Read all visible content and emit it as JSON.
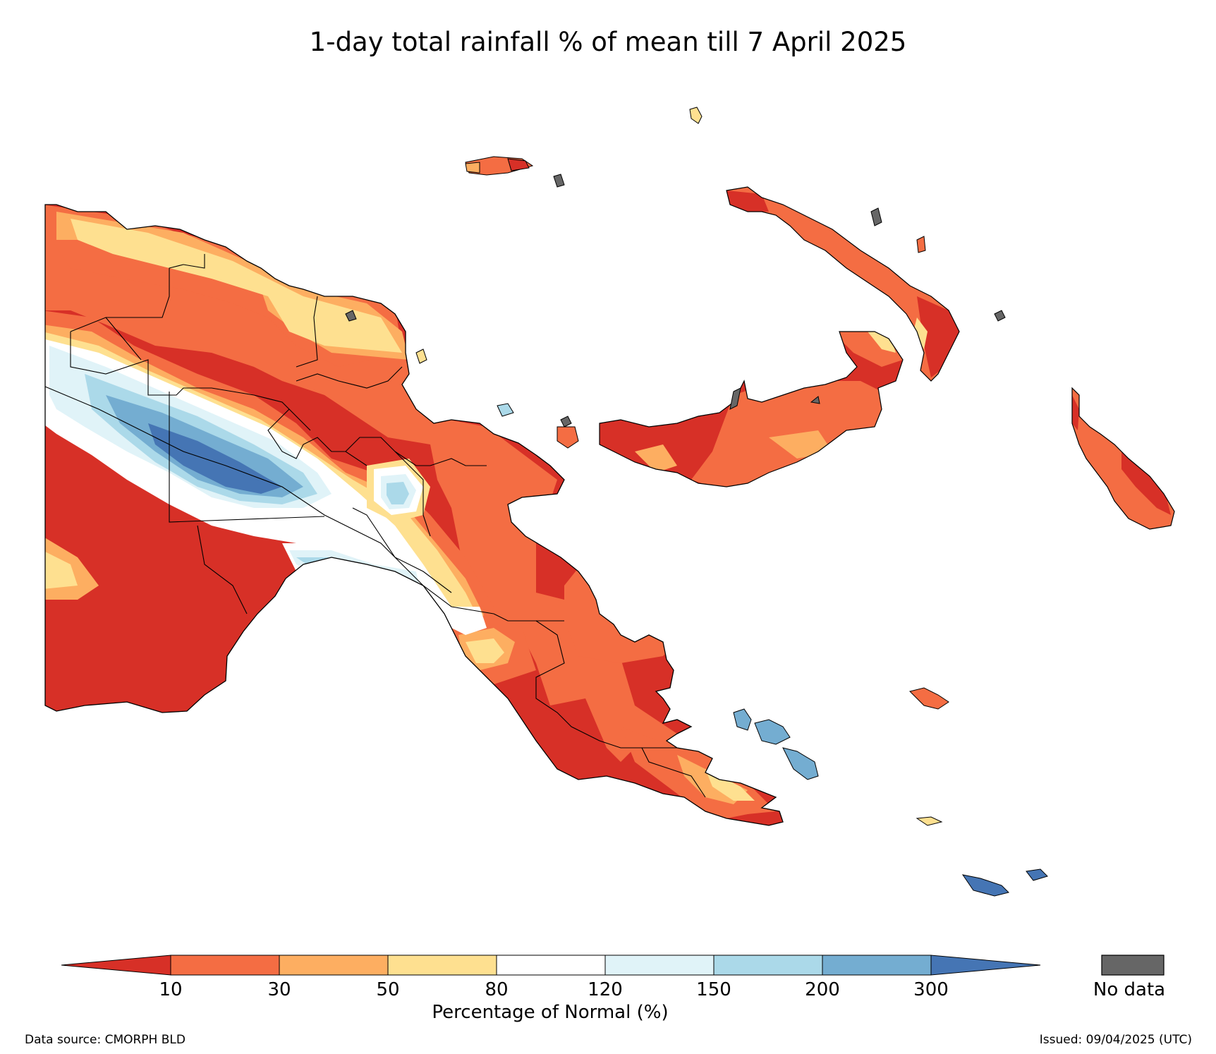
{
  "title": "1-day total rainfall % of mean till 7 April 2025",
  "colorbar": {
    "title": "Percentage of Normal (%)",
    "ticks": [
      "10",
      "30",
      "50",
      "80",
      "120",
      "150",
      "200",
      "300"
    ],
    "colors": {
      "lt10": "#d73027",
      "10-30": "#f46d43",
      "30-50": "#fdae61",
      "50-80": "#fee090",
      "80-120": "#ffffff",
      "120-150": "#e0f3f8",
      "150-200": "#abd9e9",
      "200-300": "#74add1",
      "gt300": "#4575b4"
    },
    "no_data_label": "No data",
    "no_data_color": "#666666"
  },
  "footer": {
    "source": "Data source: CMORPH BLD",
    "issued": "Issued: 09/04/2025 (UTC)"
  }
}
